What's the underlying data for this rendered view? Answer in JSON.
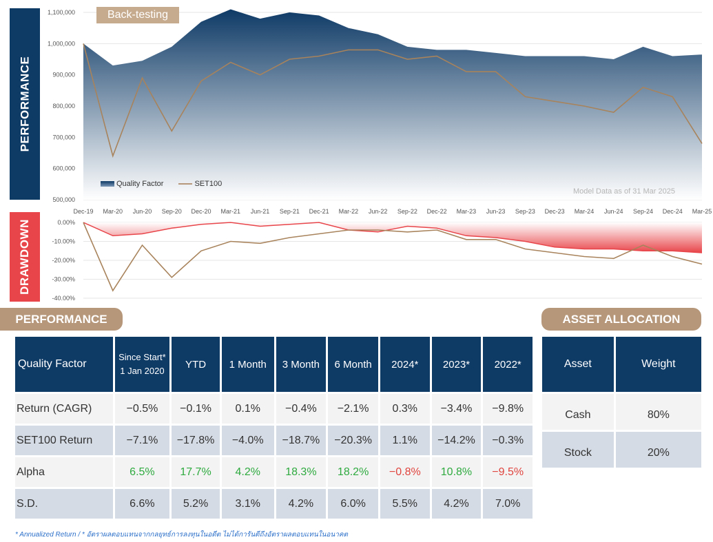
{
  "perf_sidebar": "PERFORMANCE",
  "dd_sidebar": "DRAWDOWN",
  "backtest_badge": "Back-testing",
  "model_note": "Model Data as of 31 Mar 2025",
  "legend": {
    "quality": "Quality Factor",
    "set100": "SET100"
  },
  "colors": {
    "navy": "#0e3a66",
    "tan": "#b6977a",
    "red": "#e8454a",
    "green": "#2eaa3f"
  },
  "chart_data": [
    {
      "type": "area",
      "x_ticks": [
        "Dec-19",
        "Mar-20",
        "Jun-20",
        "Sep-20",
        "Dec-20",
        "Mar-21",
        "Jun-21",
        "Sep-21",
        "Dec-21",
        "Mar-22",
        "Jun-22",
        "Sep-22",
        "Dec-22",
        "Mar-23",
        "Jun-23",
        "Sep-23",
        "Dec-23",
        "Mar-24",
        "Jun-24",
        "Sep-24",
        "Dec-24",
        "Mar-25"
      ],
      "y_ticks": [
        "1,100,000",
        "1,000,000",
        "900,000",
        "800,000",
        "700,000",
        "600,000",
        "500,000"
      ],
      "ylim": [
        500000,
        1100000
      ],
      "series": [
        {
          "name": "Quality Factor",
          "values": [
            1000000,
            930000,
            945000,
            990000,
            1070000,
            1110000,
            1080000,
            1100000,
            1090000,
            1050000,
            1030000,
            990000,
            980000,
            980000,
            970000,
            960000,
            960000,
            960000,
            950000,
            990000,
            960000,
            965000
          ]
        },
        {
          "name": "SET100",
          "values": [
            1000000,
            640000,
            890000,
            720000,
            880000,
            940000,
            900000,
            950000,
            960000,
            980000,
            980000,
            950000,
            960000,
            910000,
            910000,
            830000,
            815000,
            800000,
            780000,
            860000,
            830000,
            680000
          ]
        }
      ]
    },
    {
      "type": "area",
      "x_ticks": [
        "Dec-19",
        "Mar-20",
        "Jun-20",
        "Sep-20",
        "Dec-20",
        "Mar-21",
        "Jun-21",
        "Sep-21",
        "Dec-21",
        "Mar-22",
        "Jun-22",
        "Sep-22",
        "Dec-22",
        "Mar-23",
        "Jun-23",
        "Sep-23",
        "Dec-23",
        "Mar-24",
        "Jun-24",
        "Sep-24",
        "Dec-24",
        "Mar-25"
      ],
      "y_ticks": [
        "0.00%",
        "-10.00%",
        "-20.00%",
        "-30.00%",
        "-40.00%"
      ],
      "ylim": [
        -40,
        0
      ],
      "series": [
        {
          "name": "Quality Factor",
          "values": [
            0,
            -7,
            -6,
            -3,
            -1,
            0,
            -2,
            -1,
            0,
            -4,
            -5,
            -2,
            -3,
            -7,
            -8,
            -10,
            -13,
            -14,
            -14,
            -15,
            -15,
            -16
          ]
        },
        {
          "name": "SET100",
          "values": [
            0,
            -36,
            -12,
            -29,
            -15,
            -10,
            -11,
            -8,
            -6,
            -4,
            -4,
            -5,
            -4,
            -9,
            -9,
            -14,
            -16,
            -18,
            -19,
            -12,
            -18,
            -22
          ]
        }
      ]
    }
  ],
  "perf_header": "PERFORMANCE",
  "alloc_header": "ASSET ALLOCATION",
  "perf_table": {
    "columns": [
      "Quality Factor",
      "Since Start*\n1 Jan 2020",
      "YTD",
      "1 Month",
      "3 Month",
      "6 Month",
      "2024*",
      "2023*",
      "2022*"
    ],
    "rows": [
      {
        "label": "Return (CAGR)",
        "values": [
          "−0.5%",
          "−0.1%",
          "0.1%",
          "−0.4%",
          "−2.1%",
          "0.3%",
          "−3.4%",
          "−9.8%"
        ]
      },
      {
        "label": "SET100 Return",
        "values": [
          "−7.1%",
          "−17.8%",
          "−4.0%",
          "−18.7%",
          "−20.3%",
          "1.1%",
          "−14.2%",
          "−0.3%"
        ]
      },
      {
        "label": "Alpha",
        "values": [
          "6.5%",
          "17.7%",
          "4.2%",
          "18.3%",
          "18.2%",
          "−0.8%",
          "10.8%",
          "−9.5%"
        ]
      },
      {
        "label": "S.D.",
        "values": [
          "6.6%",
          "5.2%",
          "3.1%",
          "4.2%",
          "6.0%",
          "5.5%",
          "4.2%",
          "7.0%"
        ]
      }
    ]
  },
  "alloc_table": {
    "columns": [
      "Asset",
      "Weight"
    ],
    "rows": [
      {
        "label": "Cash",
        "value": "80%"
      },
      {
        "label": "Stock",
        "value": "20%"
      }
    ]
  },
  "footnote": "* Annualized Return / * อัตราผลตอบแทนจากกลยุทธ์การลงทุนในอดีต ไม่ได้การันตีถึงอัตราผลตอบแทนในอนาคต"
}
